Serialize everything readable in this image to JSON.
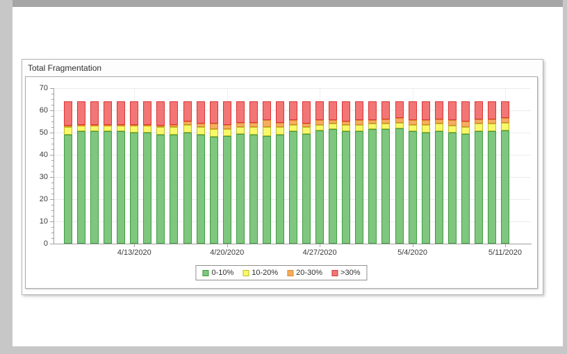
{
  "panel": {
    "title": "Total Fragmentation"
  },
  "chart_data": {
    "type": "bar",
    "stacked": true,
    "title": "Total Fragmentation",
    "grid": "horizontal",
    "legend_position": "bottom",
    "ylim": [
      0,
      70
    ],
    "y_ticks": [
      0,
      10,
      20,
      30,
      40,
      50,
      60,
      70
    ],
    "x_tick_labels": [
      "4/13/2020",
      "4/20/2020",
      "4/27/2020",
      "5/4/2020",
      "5/11/2020"
    ],
    "x_tick_indices": [
      5,
      12,
      19,
      26,
      33
    ],
    "bar_total": 64,
    "x": [
      "4/8/2020",
      "4/9/2020",
      "4/10/2020",
      "4/11/2020",
      "4/12/2020",
      "4/13/2020",
      "4/14/2020",
      "4/15/2020",
      "4/16/2020",
      "4/17/2020",
      "4/18/2020",
      "4/19/2020",
      "4/20/2020",
      "4/21/2020",
      "4/22/2020",
      "4/23/2020",
      "4/24/2020",
      "4/25/2020",
      "4/26/2020",
      "4/27/2020",
      "4/28/2020",
      "4/29/2020",
      "4/30/2020",
      "5/1/2020",
      "5/2/2020",
      "5/3/2020",
      "5/4/2020",
      "5/5/2020",
      "5/6/2020",
      "5/7/2020",
      "5/8/2020",
      "5/9/2020",
      "5/10/2020",
      "5/11/2020"
    ],
    "series": [
      {
        "name": "0-10%",
        "fill": "#7fc67f",
        "border": "#3f9c3f",
        "values": [
          49,
          50.5,
          50.5,
          50.5,
          50.5,
          50,
          50,
          49,
          49,
          50,
          49,
          48,
          48.5,
          49.5,
          49,
          48.5,
          49,
          50.5,
          49.5,
          51,
          51.5,
          50.5,
          50.5,
          51.5,
          51.5,
          52,
          50.5,
          50,
          50.5,
          50,
          49.5,
          50.5,
          50.5,
          51
        ]
      },
      {
        "name": "10-20%",
        "fill": "#f8f86a",
        "border": "#bdbd28",
        "values": [
          3.5,
          2.5,
          2.5,
          2.5,
          2.5,
          3,
          3,
          3.5,
          3.5,
          3.5,
          3.5,
          3.5,
          3,
          3,
          3.5,
          4,
          3.5,
          3,
          3,
          2.5,
          2.5,
          3,
          3,
          2.5,
          2.5,
          2.5,
          3,
          3.5,
          3.5,
          3,
          3,
          3.5,
          3.5,
          3.5
        ]
      },
      {
        "name": "20-30%",
        "fill": "#f5ac64",
        "border": "#dd8822",
        "values": [
          0.5,
          0.5,
          0.5,
          0.5,
          0.5,
          0.5,
          0.5,
          0.5,
          1,
          1.5,
          1.5,
          2.5,
          2,
          2,
          2,
          3,
          2,
          2,
          1.5,
          2,
          1.5,
          1.5,
          2,
          1.5,
          2,
          2,
          2,
          2,
          2,
          2.5,
          2.5,
          2,
          2,
          2
        ]
      },
      {
        "name": ">30%",
        "fill": "#f27676",
        "border": "#dc3434",
        "values": [
          11,
          10.5,
          10.5,
          10.5,
          10.5,
          10.5,
          10.5,
          11,
          10.5,
          9,
          10,
          10,
          10.5,
          9.5,
          9.5,
          8.5,
          9.5,
          8.5,
          10,
          8.5,
          8.5,
          9,
          8.5,
          8.5,
          8,
          7.5,
          8.5,
          8.5,
          8,
          8.5,
          9,
          8,
          8,
          7.5
        ]
      }
    ]
  }
}
